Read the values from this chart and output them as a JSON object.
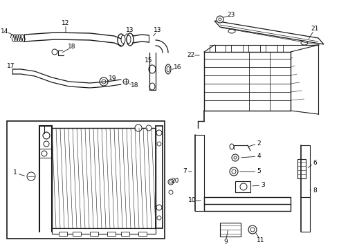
{
  "background_color": "#ffffff",
  "line_color": "#1a1a1a",
  "figsize": [
    4.9,
    3.6
  ],
  "dpi": 100,
  "label_font": 6.5
}
